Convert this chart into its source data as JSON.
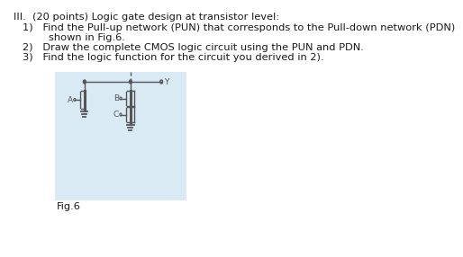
{
  "title_line": "III.  (20 points) Logic gate design at transistor level:",
  "item1": "1)   Find the Pull-up network (PUN) that corresponds to the Pull-down network (PDN)",
  "item1b": "        shown in Fig.6.",
  "item2": "2)   Draw the complete CMOS logic circuit using the PUN and PDN.",
  "item3": "3)   Find the logic function for the circuit you derived in 2).",
  "fig_label": "Fig.6",
  "bg_color": "#ffffff",
  "circuit_bg": "#daeaf5",
  "text_color": "#1a1a1a",
  "circuit_color": "#555555",
  "font_size": 8.2
}
